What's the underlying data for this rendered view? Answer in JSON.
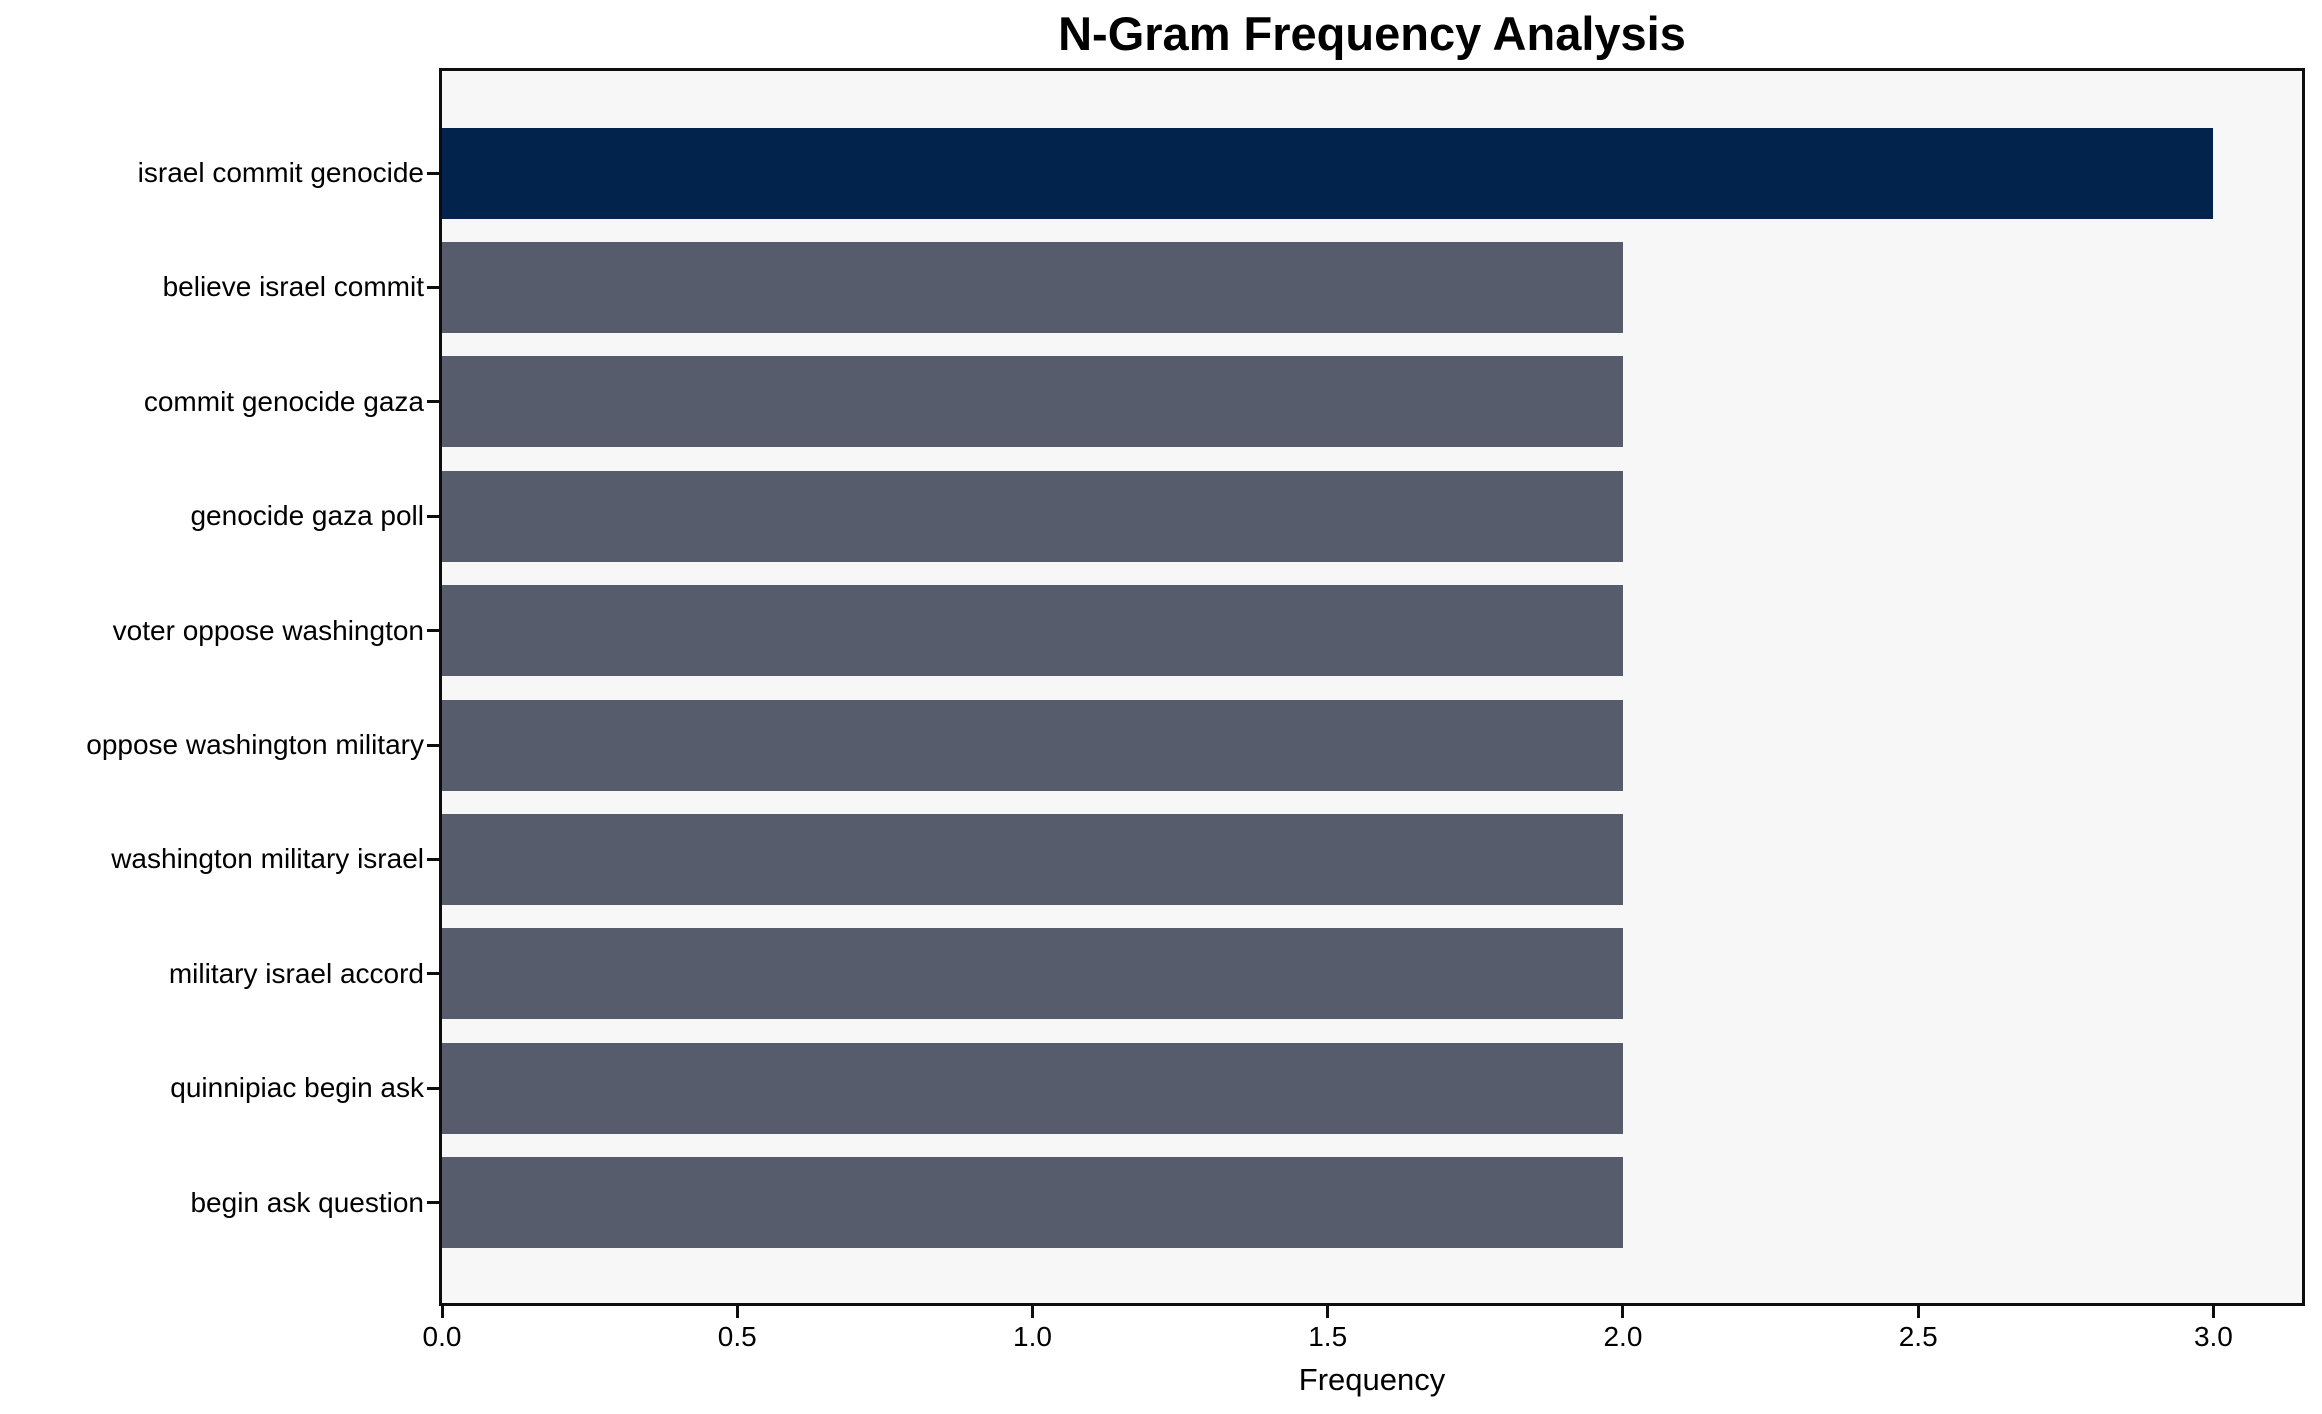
{
  "chart_data": {
    "type": "bar",
    "orientation": "horizontal",
    "title": "N-Gram Frequency Analysis",
    "categories": [
      "israel commit genocide",
      "believe israel commit",
      "commit genocide gaza",
      "genocide gaza poll",
      "voter oppose washington",
      "oppose washington military",
      "washington military israel",
      "military israel accord",
      "quinnipiac begin ask",
      "begin ask question"
    ],
    "values": [
      3,
      2,
      2,
      2,
      2,
      2,
      2,
      2,
      2,
      2
    ],
    "xlabel": "Frequency",
    "ylabel": "",
    "xlim": [
      0,
      3.15
    ],
    "xticks": [
      {
        "value": 0.0,
        "label": "0.0"
      },
      {
        "value": 0.5,
        "label": "0.5"
      },
      {
        "value": 1.0,
        "label": "1.0"
      },
      {
        "value": 1.5,
        "label": "1.5"
      },
      {
        "value": 2.0,
        "label": "2.0"
      },
      {
        "value": 2.5,
        "label": "2.5"
      },
      {
        "value": 3.0,
        "label": "3.0"
      }
    ],
    "grid": false,
    "legend": null,
    "highlight_index": 0,
    "colors": {
      "bar_highlight": "#02234C",
      "bar_default": "#565C6B",
      "plot_background": "#F7F7F7",
      "figure_background": "#FFFFFF",
      "spine": "#0D0D0D",
      "text": "#000000"
    }
  }
}
